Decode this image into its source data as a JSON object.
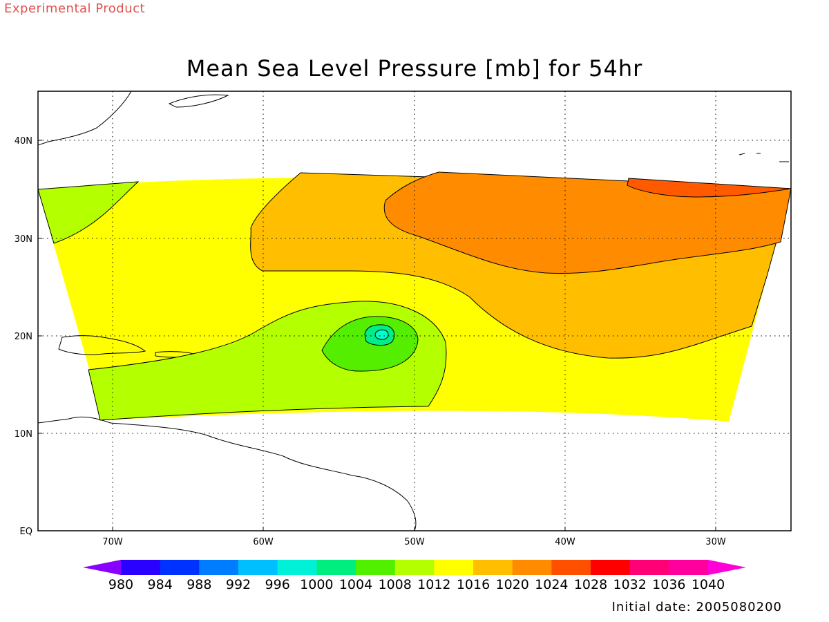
{
  "banner": "Experimental Product",
  "title": "Mean Sea Level Pressure [mb] for 54hr",
  "initial_date": "Initial date: 2005080200",
  "map": {
    "lon_ticks": [
      "70W",
      "60W",
      "50W",
      "40W",
      "30W"
    ],
    "lat_ticks": [
      "40N",
      "30N",
      "20N",
      "10N",
      "EQ"
    ],
    "contour_fill_colors": {
      "lt1008": "#55ee00",
      "1008": "#b4ff00",
      "1012": "#ffff00",
      "1016": "#ffbf00",
      "1020": "#ff8c00",
      "1024": "#ff5a00",
      "land": "#ffffff",
      "coast": "#000000"
    },
    "low_center_inner_colors": [
      "#00ee88",
      "#00ffcc"
    ]
  },
  "colorbar": {
    "colors": [
      "#8800ff",
      "#2a00ff",
      "#0032ff",
      "#007dff",
      "#00bfff",
      "#00f0d8",
      "#00ee80",
      "#50f000",
      "#b4ff00",
      "#ffff00",
      "#ffbf00",
      "#ff8c00",
      "#ff5000",
      "#ff0000",
      "#ff0077",
      "#ff009f",
      "#ff00d8"
    ],
    "labels": [
      "980",
      "984",
      "988",
      "992",
      "996",
      "1000",
      "1004",
      "1008",
      "1012",
      "1016",
      "1020",
      "1024",
      "1028",
      "1032",
      "1036",
      "1040"
    ]
  }
}
